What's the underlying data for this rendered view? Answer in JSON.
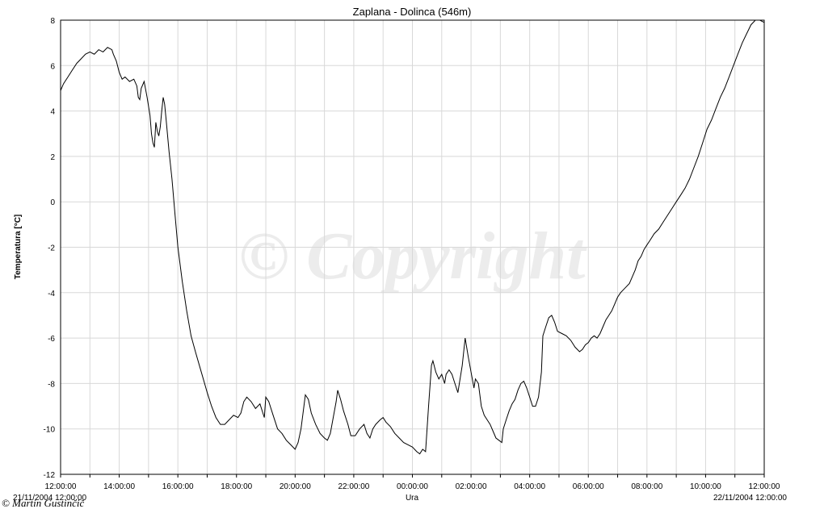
{
  "chart_data": {
    "type": "line",
    "title": "Zaplana - Dolinca (546m)",
    "xlabel": "Ura",
    "ylabel": "Temperatura [°C]",
    "ylim": [
      -12,
      8
    ],
    "yticks": [
      8,
      6,
      4,
      2,
      0,
      -2,
      -4,
      -6,
      -8,
      -10,
      -12
    ],
    "xlim": [
      0,
      24
    ],
    "xticks": [
      {
        "x": 0,
        "label": "12:00:00"
      },
      {
        "x": 2,
        "label": "14:00:00"
      },
      {
        "x": 4,
        "label": "16:00:00"
      },
      {
        "x": 6,
        "label": "18:00:00"
      },
      {
        "x": 8,
        "label": "20:00:00"
      },
      {
        "x": 10,
        "label": "22:00:00"
      },
      {
        "x": 12,
        "label": "00:00:00"
      },
      {
        "x": 14,
        "label": "02:00:00"
      },
      {
        "x": 16,
        "label": "04:00:00"
      },
      {
        "x": 18,
        "label": "06:00:00"
      },
      {
        "x": 20,
        "label": "08:00:00"
      },
      {
        "x": 22,
        "label": "10:00:00"
      },
      {
        "x": 24,
        "label": "12:00:00"
      }
    ],
    "start_label": "21/11/2004 12:00:00",
    "end_label": "22/11/2004 12:00:00",
    "grid": true,
    "series": [
      {
        "color": "#000000",
        "x_unit": "hours after 21/11/2004 12:00",
        "points": [
          [
            0.0,
            4.9
          ],
          [
            0.1,
            5.2
          ],
          [
            0.25,
            5.5
          ],
          [
            0.4,
            5.8
          ],
          [
            0.55,
            6.1
          ],
          [
            0.7,
            6.3
          ],
          [
            0.85,
            6.5
          ],
          [
            1.0,
            6.6
          ],
          [
            1.15,
            6.5
          ],
          [
            1.3,
            6.7
          ],
          [
            1.45,
            6.6
          ],
          [
            1.6,
            6.8
          ],
          [
            1.75,
            6.7
          ],
          [
            1.8,
            6.5
          ],
          [
            1.9,
            6.2
          ],
          [
            2.0,
            5.7
          ],
          [
            2.1,
            5.4
          ],
          [
            2.2,
            5.5
          ],
          [
            2.35,
            5.3
          ],
          [
            2.5,
            5.4
          ],
          [
            2.6,
            5.1
          ],
          [
            2.65,
            4.6
          ],
          [
            2.7,
            4.5
          ],
          [
            2.75,
            5.0
          ],
          [
            2.85,
            5.3
          ],
          [
            2.95,
            4.6
          ],
          [
            3.05,
            3.8
          ],
          [
            3.1,
            3.0
          ],
          [
            3.15,
            2.6
          ],
          [
            3.2,
            2.4
          ],
          [
            3.25,
            3.5
          ],
          [
            3.3,
            3.1
          ],
          [
            3.35,
            2.9
          ],
          [
            3.4,
            3.3
          ],
          [
            3.45,
            4.0
          ],
          [
            3.5,
            4.6
          ],
          [
            3.55,
            4.3
          ],
          [
            3.6,
            3.6
          ],
          [
            3.7,
            2.2
          ],
          [
            3.8,
            1.0
          ],
          [
            3.9,
            -0.5
          ],
          [
            4.0,
            -2.0
          ],
          [
            4.15,
            -3.5
          ],
          [
            4.3,
            -4.8
          ],
          [
            4.45,
            -5.9
          ],
          [
            4.6,
            -6.6
          ],
          [
            4.8,
            -7.5
          ],
          [
            5.0,
            -8.4
          ],
          [
            5.15,
            -9.0
          ],
          [
            5.3,
            -9.5
          ],
          [
            5.45,
            -9.8
          ],
          [
            5.6,
            -9.8
          ],
          [
            5.75,
            -9.6
          ],
          [
            5.9,
            -9.4
          ],
          [
            6.05,
            -9.5
          ],
          [
            6.15,
            -9.3
          ],
          [
            6.25,
            -8.8
          ],
          [
            6.35,
            -8.6
          ],
          [
            6.5,
            -8.8
          ],
          [
            6.65,
            -9.1
          ],
          [
            6.8,
            -8.9
          ],
          [
            6.9,
            -9.3
          ],
          [
            6.95,
            -9.5
          ],
          [
            7.0,
            -8.6
          ],
          [
            7.1,
            -8.8
          ],
          [
            7.25,
            -9.4
          ],
          [
            7.4,
            -10.0
          ],
          [
            7.55,
            -10.2
          ],
          [
            7.7,
            -10.5
          ],
          [
            7.85,
            -10.7
          ],
          [
            8.0,
            -10.9
          ],
          [
            8.1,
            -10.6
          ],
          [
            8.2,
            -10.0
          ],
          [
            8.3,
            -9.0
          ],
          [
            8.35,
            -8.5
          ],
          [
            8.45,
            -8.7
          ],
          [
            8.55,
            -9.3
          ],
          [
            8.7,
            -9.8
          ],
          [
            8.85,
            -10.2
          ],
          [
            9.0,
            -10.4
          ],
          [
            9.1,
            -10.5
          ],
          [
            9.2,
            -10.2
          ],
          [
            9.3,
            -9.5
          ],
          [
            9.4,
            -8.8
          ],
          [
            9.45,
            -8.3
          ],
          [
            9.55,
            -8.7
          ],
          [
            9.65,
            -9.2
          ],
          [
            9.8,
            -9.8
          ],
          [
            9.9,
            -10.3
          ],
          [
            10.05,
            -10.3
          ],
          [
            10.2,
            -10.0
          ],
          [
            10.35,
            -9.8
          ],
          [
            10.45,
            -10.2
          ],
          [
            10.55,
            -10.4
          ],
          [
            10.65,
            -10.0
          ],
          [
            10.75,
            -9.8
          ],
          [
            10.9,
            -9.6
          ],
          [
            11.0,
            -9.5
          ],
          [
            11.1,
            -9.7
          ],
          [
            11.25,
            -9.9
          ],
          [
            11.4,
            -10.2
          ],
          [
            11.55,
            -10.4
          ],
          [
            11.7,
            -10.6
          ],
          [
            11.85,
            -10.7
          ],
          [
            12.0,
            -10.8
          ],
          [
            12.15,
            -11.0
          ],
          [
            12.25,
            -11.1
          ],
          [
            12.35,
            -10.9
          ],
          [
            12.45,
            -11.0
          ],
          [
            12.55,
            -9.0
          ],
          [
            12.65,
            -7.2
          ],
          [
            12.7,
            -7.0
          ],
          [
            12.8,
            -7.5
          ],
          [
            12.9,
            -7.8
          ],
          [
            13.0,
            -7.6
          ],
          [
            13.1,
            -8.0
          ],
          [
            13.15,
            -7.6
          ],
          [
            13.25,
            -7.4
          ],
          [
            13.35,
            -7.6
          ],
          [
            13.45,
            -8.0
          ],
          [
            13.55,
            -8.4
          ],
          [
            13.6,
            -8.0
          ],
          [
            13.7,
            -7.2
          ],
          [
            13.75,
            -6.6
          ],
          [
            13.8,
            -6.0
          ],
          [
            13.9,
            -6.8
          ],
          [
            14.0,
            -7.5
          ],
          [
            14.1,
            -8.2
          ],
          [
            14.15,
            -7.8
          ],
          [
            14.25,
            -8.0
          ],
          [
            14.35,
            -9.0
          ],
          [
            14.45,
            -9.4
          ],
          [
            14.55,
            -9.6
          ],
          [
            14.65,
            -9.8
          ],
          [
            14.75,
            -10.1
          ],
          [
            14.85,
            -10.4
          ],
          [
            14.95,
            -10.5
          ],
          [
            15.05,
            -10.6
          ],
          [
            15.1,
            -10.0
          ],
          [
            15.2,
            -9.6
          ],
          [
            15.3,
            -9.2
          ],
          [
            15.4,
            -8.9
          ],
          [
            15.5,
            -8.7
          ],
          [
            15.6,
            -8.3
          ],
          [
            15.7,
            -8.0
          ],
          [
            15.8,
            -7.9
          ],
          [
            15.9,
            -8.2
          ],
          [
            16.0,
            -8.6
          ],
          [
            16.1,
            -9.0
          ],
          [
            16.2,
            -9.0
          ],
          [
            16.3,
            -8.6
          ],
          [
            16.4,
            -7.5
          ],
          [
            16.45,
            -5.9
          ],
          [
            16.55,
            -5.5
          ],
          [
            16.65,
            -5.1
          ],
          [
            16.75,
            -5.0
          ],
          [
            16.85,
            -5.3
          ],
          [
            16.95,
            -5.7
          ],
          [
            17.1,
            -5.8
          ],
          [
            17.25,
            -5.9
          ],
          [
            17.4,
            -6.1
          ],
          [
            17.55,
            -6.4
          ],
          [
            17.7,
            -6.6
          ],
          [
            17.8,
            -6.5
          ],
          [
            17.9,
            -6.3
          ],
          [
            18.0,
            -6.2
          ],
          [
            18.1,
            -6.0
          ],
          [
            18.2,
            -5.9
          ],
          [
            18.3,
            -6.0
          ],
          [
            18.4,
            -5.8
          ],
          [
            18.5,
            -5.5
          ],
          [
            18.6,
            -5.2
          ],
          [
            18.7,
            -5.0
          ],
          [
            18.8,
            -4.8
          ],
          [
            18.9,
            -4.5
          ],
          [
            19.0,
            -4.2
          ],
          [
            19.1,
            -4.0
          ],
          [
            19.25,
            -3.8
          ],
          [
            19.4,
            -3.6
          ],
          [
            19.5,
            -3.3
          ],
          [
            19.6,
            -3.0
          ],
          [
            19.7,
            -2.6
          ],
          [
            19.8,
            -2.4
          ],
          [
            19.9,
            -2.1
          ],
          [
            20.0,
            -1.9
          ],
          [
            20.1,
            -1.7
          ],
          [
            20.25,
            -1.4
          ],
          [
            20.4,
            -1.2
          ],
          [
            20.55,
            -0.9
          ],
          [
            20.7,
            -0.6
          ],
          [
            20.85,
            -0.3
          ],
          [
            21.0,
            0.0
          ],
          [
            21.15,
            0.3
          ],
          [
            21.3,
            0.6
          ],
          [
            21.45,
            1.0
          ],
          [
            21.6,
            1.5
          ],
          [
            21.75,
            2.0
          ],
          [
            21.9,
            2.6
          ],
          [
            22.05,
            3.2
          ],
          [
            22.2,
            3.6
          ],
          [
            22.35,
            4.1
          ],
          [
            22.5,
            4.6
          ],
          [
            22.65,
            5.0
          ],
          [
            22.8,
            5.5
          ],
          [
            22.95,
            6.0
          ],
          [
            23.1,
            6.5
          ],
          [
            23.25,
            7.0
          ],
          [
            23.4,
            7.4
          ],
          [
            23.55,
            7.8
          ],
          [
            23.7,
            8.0
          ],
          [
            23.85,
            8.0
          ],
          [
            24.0,
            7.9
          ]
        ]
      }
    ]
  },
  "watermark": "© Copyright",
  "credit": "© Martin Gustinčič"
}
